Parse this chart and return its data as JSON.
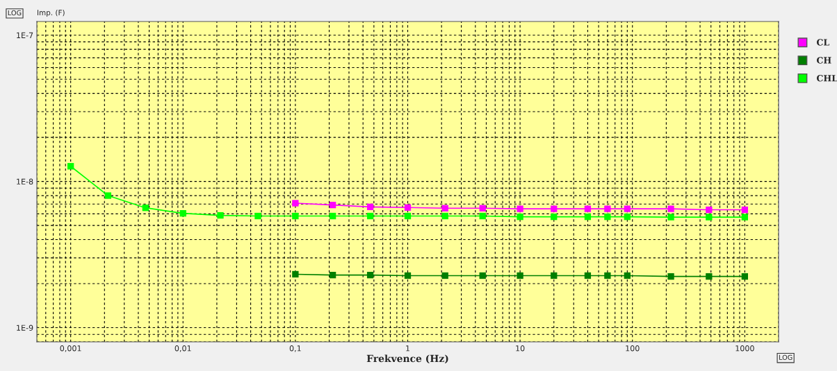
{
  "chart_data": {
    "type": "line",
    "xlabel": "Frekvence (Hz)",
    "ylabel": "Imp. (F)",
    "log": "xy",
    "grid": true,
    "legend": "top right",
    "marker": "square",
    "line_style": "solid",
    "annotations": [
      "LOG",
      "LOG"
    ],
    "xlim": [
      0.0005,
      2000
    ],
    "ylim": [
      8e-10,
      1.24e-07
    ],
    "xticks": [
      {
        "value": 0.001,
        "label": "0,001"
      },
      {
        "value": 0.01,
        "label": "0,01"
      },
      {
        "value": 0.1,
        "label": "0,1"
      },
      1,
      10,
      100,
      1000
    ],
    "yticks": [
      {
        "value": 1e-09,
        "label": "1E-9"
      },
      {
        "value": 1e-08,
        "label": "1E-8"
      },
      {
        "value": 1e-07,
        "label": "1E-7"
      }
    ],
    "series": [
      {
        "name": "CL",
        "color": "#ff00ff",
        "x": [
          0.1,
          0.215,
          0.464,
          1,
          2.15,
          4.64,
          10,
          20,
          40,
          60,
          90,
          220,
          480,
          1000
        ],
        "values": [
          7.1e-09,
          6.9e-09,
          6.7e-09,
          6.63e-09,
          6.56e-09,
          6.56e-09,
          6.5e-09,
          6.5e-09,
          6.5e-09,
          6.5e-09,
          6.5e-09,
          6.5e-09,
          6.4e-09,
          6.4e-09
        ]
      },
      {
        "name": "CH",
        "color": "#007f00",
        "x": [
          0.1,
          0.215,
          0.464,
          1,
          2.15,
          4.64,
          10,
          20,
          40,
          60,
          90,
          220,
          480,
          1000
        ],
        "values": [
          2.32e-09,
          2.29e-09,
          2.29e-09,
          2.27e-09,
          2.27e-09,
          2.27e-09,
          2.27e-09,
          2.27e-09,
          2.27e-09,
          2.27e-09,
          2.27e-09,
          2.24e-09,
          2.24e-09,
          2.24e-09
        ]
      },
      {
        "name": "CHL",
        "color": "#00ff00",
        "x": [
          0.001,
          0.00215,
          0.00464,
          0.01,
          0.0215,
          0.0464,
          0.1,
          0.215,
          0.464,
          1,
          2.15,
          4.64,
          10,
          20,
          40,
          60,
          90,
          220,
          480,
          1000
        ],
        "values": [
          1.27e-08,
          8e-09,
          6.6e-09,
          6.05e-09,
          5.86e-09,
          5.8e-09,
          5.8e-09,
          5.8e-09,
          5.8e-09,
          5.8e-09,
          5.8e-09,
          5.8e-09,
          5.73e-09,
          5.73e-09,
          5.73e-09,
          5.73e-09,
          5.73e-09,
          5.7e-09,
          5.7e-09,
          5.7e-09
        ]
      }
    ]
  }
}
